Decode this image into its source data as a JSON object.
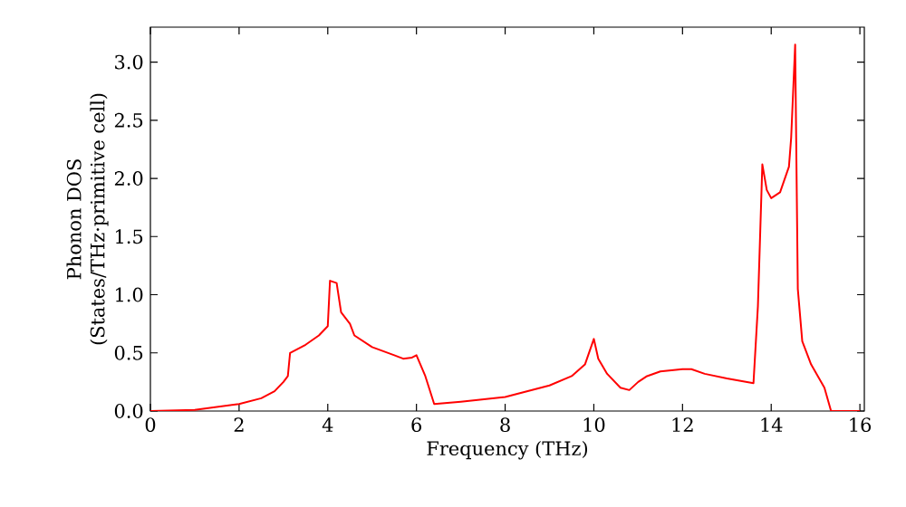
{
  "chart_data": {
    "type": "line",
    "xlabel": "Frequency (THz)",
    "ylabel": "Phonon DOS\n(States/THz·primitive cell)",
    "xlim": [
      0,
      16.1
    ],
    "ylim": [
      0,
      3.3
    ],
    "xticks": [
      0,
      2,
      4,
      6,
      8,
      10,
      12,
      14,
      16
    ],
    "yticks": [
      {
        "value": 0,
        "label": "0.0"
      },
      0.5,
      {
        "value": 1,
        "label": "1.0"
      },
      1.5,
      {
        "value": 2,
        "label": "2.0"
      },
      2.5,
      {
        "value": 3,
        "label": "3.0"
      }
    ],
    "marker": "none",
    "line_style": "solid",
    "series": [
      {
        "color": "#ff0000",
        "x": [
          0,
          1,
          2,
          2.5,
          2.8,
          3.0,
          3.1,
          3.15,
          3.5,
          3.8,
          4.0,
          4.05,
          4.2,
          4.3,
          4.5,
          4.6,
          4.8,
          5.0,
          5.5,
          5.7,
          5.9,
          6.0,
          6.2,
          6.4,
          7,
          8,
          9,
          9.5,
          9.8,
          10.0,
          10.1,
          10.3,
          10.6,
          10.8,
          11.0,
          11.2,
          11.5,
          12.0,
          12.2,
          12.5,
          13.0,
          13.6,
          13.7,
          13.8,
          13.9,
          14.0,
          14.2,
          14.4,
          14.45,
          14.54,
          14.6,
          14.7,
          14.9,
          15.2,
          15.35,
          16.0
        ],
        "values": [
          0,
          0.01,
          0.06,
          0.11,
          0.17,
          0.25,
          0.3,
          0.5,
          0.57,
          0.65,
          0.73,
          1.12,
          1.1,
          0.85,
          0.75,
          0.65,
          0.6,
          0.55,
          0.48,
          0.45,
          0.46,
          0.48,
          0.3,
          0.06,
          0.08,
          0.12,
          0.22,
          0.3,
          0.4,
          0.62,
          0.45,
          0.32,
          0.2,
          0.18,
          0.25,
          0.3,
          0.34,
          0.36,
          0.36,
          0.32,
          0.28,
          0.24,
          0.9,
          2.12,
          1.9,
          1.83,
          1.88,
          2.1,
          2.35,
          3.15,
          1.05,
          0.6,
          0.4,
          0.2,
          0,
          0
        ]
      }
    ]
  }
}
